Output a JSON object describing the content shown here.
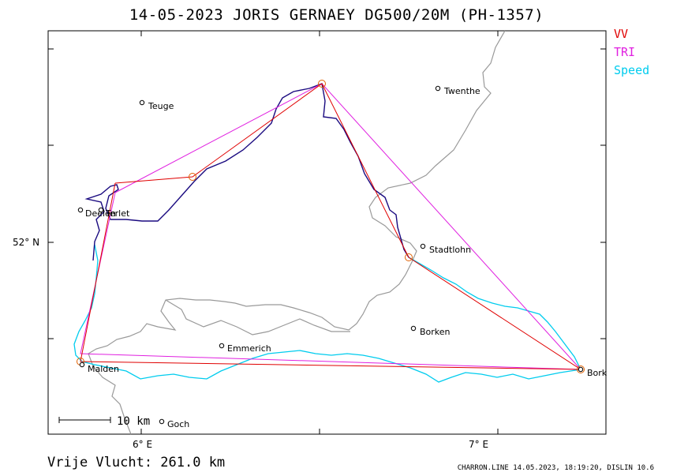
{
  "header": {
    "title": "14-05-2023   JORIS GERNAEY   DG500/20M (PH-1357)"
  },
  "legend": {
    "vv": "VV",
    "tri": "TRI",
    "speed": "Speed",
    "colors": {
      "vv": "#e00000",
      "tri": "#e020e0",
      "speed": "#00ccee"
    }
  },
  "axes": {
    "lat_label": "52° N",
    "lon_label_1": "6° E",
    "lon_label_2": "7° E"
  },
  "places": [
    {
      "name": "Teuge"
    },
    {
      "name": "Twenthe"
    },
    {
      "name": "Deelen"
    },
    {
      "name": "Terlet"
    },
    {
      "name": "Stadtlohn"
    },
    {
      "name": "Borken"
    },
    {
      "name": "Emmerich"
    },
    {
      "name": "Malden"
    },
    {
      "name": "Bork"
    },
    {
      "name": "Goch"
    }
  ],
  "scale": {
    "label": "10 km"
  },
  "footer": {
    "distance": "Vrije Vlucht:  261.0 km",
    "info": "CHARRON.LINE 14.05.2023, 18:19:20, DISLIN 10.6"
  }
}
